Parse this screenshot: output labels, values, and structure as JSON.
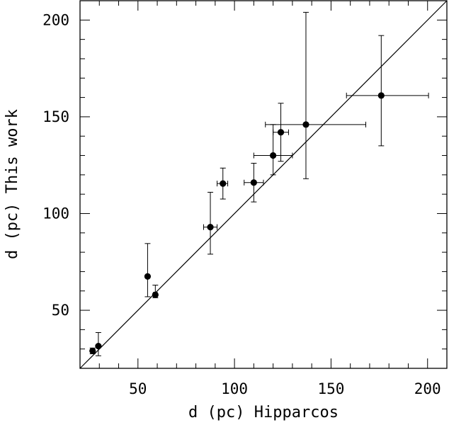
{
  "chart_data": {
    "type": "scatter",
    "xlabel": "d (pc) Hipparcos",
    "ylabel": "d (pc) This work",
    "xlim": [
      20,
      210
    ],
    "ylim": [
      20,
      210
    ],
    "xticks": [
      50,
      100,
      150,
      200
    ],
    "yticks": [
      50,
      100,
      150,
      200
    ],
    "grid": false,
    "legend": "none",
    "reference_line": {
      "label": "",
      "slope": 1,
      "intercept": 0
    },
    "points": [
      {
        "x": 26.5,
        "y": 29,
        "xerr": [
          0.5,
          0.5
        ],
        "yerr": [
          1.5,
          1.5
        ]
      },
      {
        "x": 29.5,
        "y": 31.5,
        "xerr": [
          0.5,
          0.5
        ],
        "yerr": [
          5,
          7
        ]
      },
      {
        "x": 55,
        "y": 67.5,
        "xerr": [
          0.5,
          0.5
        ],
        "yerr": [
          10.5,
          17
        ]
      },
      {
        "x": 59,
        "y": 58,
        "xerr": [
          1,
          1
        ],
        "yerr": [
          1.5,
          5
        ]
      },
      {
        "x": 87.5,
        "y": 93,
        "xerr": [
          3.5,
          3.5
        ],
        "yerr": [
          14,
          18
        ]
      },
      {
        "x": 94,
        "y": 115.5,
        "xerr": [
          3,
          2.5
        ],
        "yerr": [
          8,
          8
        ]
      },
      {
        "x": 110,
        "y": 116,
        "xerr": [
          5,
          5
        ],
        "yerr": [
          10,
          10
        ]
      },
      {
        "x": 120,
        "y": 130,
        "xerr": [
          10,
          10
        ],
        "yerr": [
          10,
          16
        ]
      },
      {
        "x": 124,
        "y": 142,
        "xerr": [
          4,
          4
        ],
        "yerr": [
          15,
          15
        ]
      },
      {
        "x": 137,
        "y": 146,
        "xerr": [
          21,
          31
        ],
        "yerr": [
          28,
          58
        ]
      },
      {
        "x": 176,
        "y": 161,
        "xerr": [
          18,
          24.5
        ],
        "yerr": [
          26,
          31
        ]
      }
    ]
  }
}
